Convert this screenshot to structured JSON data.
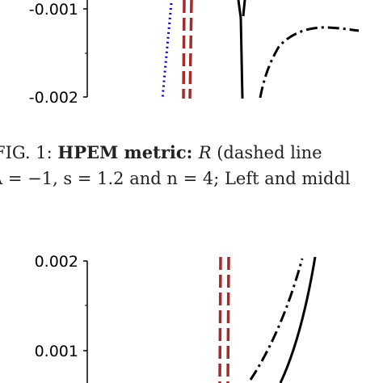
{
  "top_panel": {
    "tick_labels": [
      "-0.001",
      "-0.002"
    ]
  },
  "caption": {
    "line1_prefix": "FIG. 1: ",
    "line1_bold": "HPEM metric: ",
    "line1_symbol": "R",
    "line1_rest": " (dashed line",
    "line2": "Λ = −1, s = 1.2 and n = 4; Left and middl"
  },
  "bottom_panel": {
    "tick_labels": [
      "0.002",
      "0.001"
    ]
  },
  "colors": {
    "dotted_curve": "#0000cc",
    "dashed_curve": "#a52a2a",
    "solid_curve": "#000000",
    "dashdot_curve": "#000000"
  }
}
